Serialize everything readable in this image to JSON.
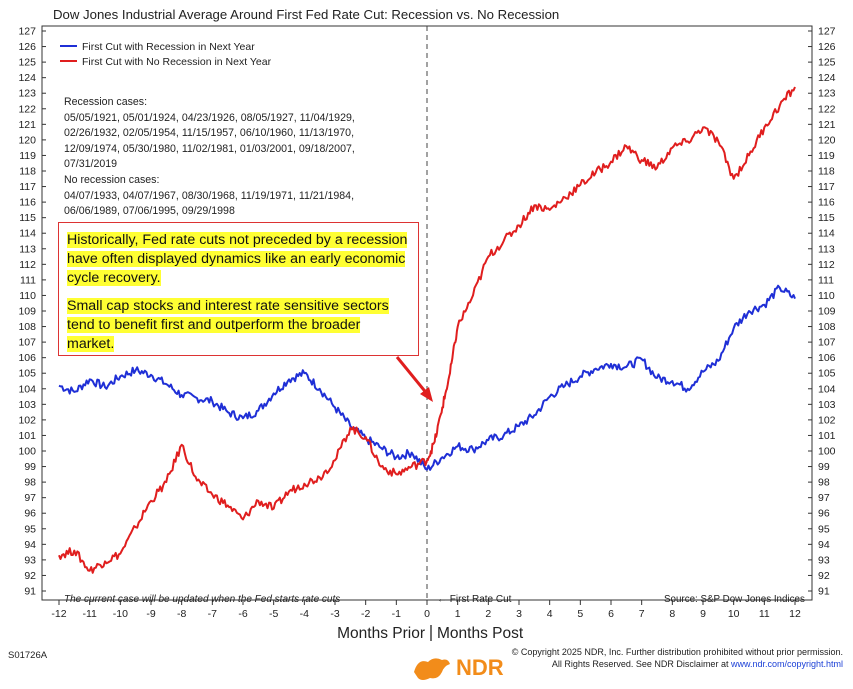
{
  "chart_data": {
    "type": "line",
    "title": "Dow Jones Industrial Average Around First Fed Rate Cut: Recession vs. No Recession",
    "xlabel_left": "Months Prior",
    "xlabel_right": "Months Post",
    "x_ticks": [
      "-12",
      "-11",
      "-10",
      "-9",
      "-8",
      "-7",
      "-6",
      "-5",
      "-4",
      "-3",
      "-2",
      "-1",
      "0",
      "1",
      "2",
      "3",
      "4",
      "5",
      "6",
      "7",
      "8",
      "9",
      "10",
      "11",
      "12"
    ],
    "y_ticks": [
      "91",
      "92",
      "93",
      "94",
      "95",
      "96",
      "97",
      "98",
      "99",
      "100",
      "101",
      "102",
      "103",
      "104",
      "105",
      "106",
      "107",
      "108",
      "109",
      "110",
      "111",
      "112",
      "113",
      "114",
      "115",
      "116",
      "117",
      "118",
      "119",
      "120",
      "121",
      "122",
      "123",
      "124",
      "125",
      "126",
      "127"
    ],
    "xlim": [
      -12,
      12
    ],
    "ylim": [
      91,
      127
    ],
    "grid": false,
    "legend_position": "top-left",
    "marker_label": "First Rate Cut",
    "series": [
      {
        "name": "First Cut with Recession in Next Year",
        "color": "#1f2fd6",
        "x": [
          -12,
          -11.5,
          -11,
          -10.5,
          -10,
          -9.5,
          -9,
          -8.5,
          -8,
          -7.5,
          -7,
          -6.5,
          -6,
          -5.5,
          -5,
          -4.5,
          -4,
          -3.5,
          -3,
          -2.5,
          -2,
          -1.5,
          -1,
          -0.5,
          0,
          0.5,
          1,
          1.5,
          2,
          2.5,
          3,
          3.5,
          4,
          4.5,
          5,
          5.5,
          6,
          6.5,
          7,
          7.5,
          8,
          8.5,
          9,
          9.5,
          10,
          10.5,
          11,
          11.5,
          12
        ],
        "y": [
          104.2,
          103.8,
          104.6,
          104.1,
          104.8,
          105.2,
          104.9,
          104.3,
          103.6,
          103.4,
          103.2,
          102.5,
          102.1,
          102.6,
          103.7,
          104.6,
          105.0,
          104.0,
          102.8,
          101.6,
          100.8,
          100.2,
          99.6,
          99.9,
          98.8,
          99.6,
          100.3,
          100.1,
          100.7,
          101.0,
          101.6,
          102.3,
          103.5,
          104.2,
          104.8,
          105.3,
          105.6,
          105.4,
          105.9,
          104.7,
          104.5,
          104.0,
          105.1,
          105.8,
          107.9,
          109.0,
          109.4,
          110.5,
          109.8
        ]
      },
      {
        "name": "First Cut with No Recession in Next Year",
        "color": "#e01e1e",
        "x": [
          -12,
          -11.5,
          -11,
          -10.5,
          -10,
          -9.5,
          -9,
          -8.5,
          -8,
          -7.5,
          -7,
          -6.5,
          -6,
          -5.5,
          -5,
          -4.5,
          -4,
          -3.5,
          -3,
          -2.5,
          -2,
          -1.5,
          -1,
          -0.5,
          0,
          0.25,
          0.5,
          0.75,
          1,
          1.5,
          2,
          2.5,
          3,
          3.5,
          4,
          4.5,
          5,
          5.5,
          6,
          6.5,
          7,
          7.5,
          8,
          8.5,
          9,
          9.5,
          10,
          10.5,
          11,
          11.5,
          12
        ],
        "y": [
          93.3,
          93.6,
          92.3,
          92.9,
          93.4,
          95.1,
          96.8,
          98.0,
          100.4,
          98.1,
          97.2,
          96.5,
          95.6,
          96.8,
          96.3,
          97.4,
          97.9,
          98.3,
          99.4,
          101.5,
          100.9,
          99.0,
          98.5,
          99.0,
          99.4,
          100.6,
          102.8,
          105.0,
          108.0,
          110.0,
          112.5,
          113.5,
          114.5,
          115.8,
          115.5,
          116.3,
          117.1,
          117.9,
          118.6,
          119.6,
          118.7,
          118.2,
          119.5,
          119.9,
          120.8,
          119.9,
          117.5,
          119.0,
          120.8,
          122.2,
          123.4
        ]
      }
    ],
    "annotations": {
      "recession_title": "Recession cases:",
      "recession_lines": [
        "05/05/1921, 05/01/1924, 04/23/1926, 08/05/1927, 11/04/1929,",
        "02/26/1932, 02/05/1954, 11/15/1957, 06/10/1960, 11/13/1970,",
        "12/09/1974, 05/30/1980, 11/02/1981, 01/03/2001, 09/18/2007,",
        "07/31/2019"
      ],
      "no_recession_title": "No recession cases:",
      "no_recession_lines": [
        "04/07/1933, 04/07/1967, 08/30/1968, 11/19/1971, 11/21/1984,",
        "06/06/1989, 07/06/1995, 09/29/1998"
      ],
      "callout_para1": [
        "Historically, Fed rate cuts not preceded by a recession",
        "have often displayed dynamics like an early economic",
        "cycle recovery."
      ],
      "callout_para2": [
        "Small cap stocks and interest rate sensitive sectors",
        "tend to benefit first and outperform the broader",
        "market."
      ],
      "bottom_note": "The current case will be updated when the Fed starts rate cuts",
      "source": "Source: S&P Dow Jones Indices",
      "first_cut_label": "← First Rate Cut"
    }
  },
  "footer": {
    "code": "S01726A",
    "copyright_line1": "© Copyright 2025 NDR, Inc. Further distribution prohibited without prior permission.",
    "copyright_line2_pre": "All Rights Reserved. See NDR Disclaimer at ",
    "copyright_link": "www.ndr.com/copyright.html",
    "logo": "NDR",
    "logo_color": "#f28c1a"
  }
}
